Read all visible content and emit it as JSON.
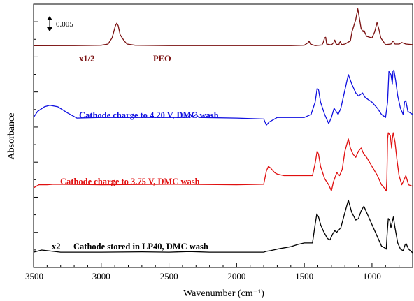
{
  "chart_data": {
    "type": "line",
    "title": "",
    "xlabel": "Wavenumber (cm⁻¹)",
    "ylabel": "Absorbance",
    "xlim": [
      3500,
      700
    ],
    "x_reversed": true,
    "x_ticks": [
      3500,
      3000,
      2500,
      2000,
      1500,
      1000
    ],
    "grid": false,
    "scale_bar": "0.005",
    "series": [
      {
        "name": "PEO",
        "multiplier_label": "x1/2",
        "color": "#7a1010",
        "points": [
          [
            3500,
            0.7845
          ],
          [
            3200,
            0.785
          ],
          [
            3000,
            0.786
          ],
          [
            2950,
            0.79
          ],
          [
            2920,
            0.81
          ],
          [
            2895,
            0.85
          ],
          [
            2885,
            0.858
          ],
          [
            2875,
            0.85
          ],
          [
            2860,
            0.82
          ],
          [
            2830,
            0.8
          ],
          [
            2810,
            0.79
          ],
          [
            2750,
            0.786
          ],
          [
            2500,
            0.785
          ],
          [
            2000,
            0.785
          ],
          [
            1600,
            0.785
          ],
          [
            1500,
            0.786
          ],
          [
            1470,
            0.795
          ],
          [
            1465,
            0.8
          ],
          [
            1455,
            0.79
          ],
          [
            1420,
            0.785
          ],
          [
            1370,
            0.787
          ],
          [
            1360,
            0.795
          ],
          [
            1350,
            0.81
          ],
          [
            1342,
            0.812
          ],
          [
            1335,
            0.79
          ],
          [
            1300,
            0.787
          ],
          [
            1282,
            0.795
          ],
          [
            1275,
            0.803
          ],
          [
            1265,
            0.79
          ],
          [
            1245,
            0.787
          ],
          [
            1240,
            0.795
          ],
          [
            1233,
            0.798
          ],
          [
            1225,
            0.788
          ],
          [
            1200,
            0.79
          ],
          [
            1160,
            0.8
          ],
          [
            1148,
            0.83
          ],
          [
            1120,
            0.87
          ],
          [
            1105,
            0.905
          ],
          [
            1095,
            0.88
          ],
          [
            1080,
            0.84
          ],
          [
            1065,
            0.83
          ],
          [
            1060,
            0.835
          ],
          [
            1040,
            0.815
          ],
          [
            1000,
            0.81
          ],
          [
            980,
            0.83
          ],
          [
            963,
            0.86
          ],
          [
            950,
            0.84
          ],
          [
            935,
            0.81
          ],
          [
            900,
            0.788
          ],
          [
            860,
            0.79
          ],
          [
            845,
            0.8
          ],
          [
            842,
            0.8
          ],
          [
            830,
            0.79
          ],
          [
            800,
            0.79
          ],
          [
            780,
            0.795
          ],
          [
            750,
            0.79
          ],
          [
            700,
            0.788
          ]
        ]
      },
      {
        "name": "Cathode charge to 4.20 V, DMC wash",
        "color": "#1010e0",
        "points": [
          [
            3500,
            0.55
          ],
          [
            3470,
            0.57
          ],
          [
            3420,
            0.585
          ],
          [
            3380,
            0.59
          ],
          [
            3320,
            0.585
          ],
          [
            3250,
            0.565
          ],
          [
            3180,
            0.548
          ],
          [
            3000,
            0.55
          ],
          [
            2600,
            0.55
          ],
          [
            2360,
            0.55
          ],
          [
            2345,
            0.56
          ],
          [
            2340,
            0.56
          ],
          [
            2330,
            0.55
          ],
          [
            2300,
            0.56
          ],
          [
            2280,
            0.55
          ],
          [
            2000,
            0.548
          ],
          [
            1800,
            0.545
          ],
          [
            1780,
            0.525
          ],
          [
            1760,
            0.535
          ],
          [
            1700,
            0.55
          ],
          [
            1600,
            0.55
          ],
          [
            1500,
            0.55
          ],
          [
            1450,
            0.56
          ],
          [
            1420,
            0.6
          ],
          [
            1405,
            0.645
          ],
          [
            1395,
            0.64
          ],
          [
            1380,
            0.6
          ],
          [
            1350,
            0.56
          ],
          [
            1320,
            0.53
          ],
          [
            1300,
            0.55
          ],
          [
            1280,
            0.58
          ],
          [
            1250,
            0.56
          ],
          [
            1230,
            0.58
          ],
          [
            1200,
            0.64
          ],
          [
            1175,
            0.69
          ],
          [
            1150,
            0.66
          ],
          [
            1120,
            0.63
          ],
          [
            1100,
            0.62
          ],
          [
            1070,
            0.63
          ],
          [
            1050,
            0.615
          ],
          [
            1000,
            0.6
          ],
          [
            960,
            0.58
          ],
          [
            930,
            0.56
          ],
          [
            900,
            0.55
          ],
          [
            885,
            0.6
          ],
          [
            875,
            0.7
          ],
          [
            860,
            0.69
          ],
          [
            850,
            0.66
          ],
          [
            845,
            0.7
          ],
          [
            838,
            0.705
          ],
          [
            825,
            0.67
          ],
          [
            810,
            0.62
          ],
          [
            790,
            0.58
          ],
          [
            770,
            0.56
          ],
          [
            760,
            0.6
          ],
          [
            750,
            0.605
          ],
          [
            735,
            0.57
          ],
          [
            700,
            0.56
          ]
        ]
      },
      {
        "name": "Cathode charge to 3.75 V, DMC wash",
        "color": "#e01010",
        "points": [
          [
            3500,
            0.32
          ],
          [
            3460,
            0.33
          ],
          [
            3400,
            0.33
          ],
          [
            3350,
            0.332
          ],
          [
            3000,
            0.33
          ],
          [
            2500,
            0.332
          ],
          [
            2000,
            0.33
          ],
          [
            1800,
            0.332
          ],
          [
            1780,
            0.375
          ],
          [
            1765,
            0.39
          ],
          [
            1750,
            0.385
          ],
          [
            1720,
            0.37
          ],
          [
            1700,
            0.365
          ],
          [
            1650,
            0.36
          ],
          [
            1600,
            0.36
          ],
          [
            1500,
            0.36
          ],
          [
            1440,
            0.36
          ],
          [
            1420,
            0.4
          ],
          [
            1405,
            0.44
          ],
          [
            1395,
            0.43
          ],
          [
            1380,
            0.39
          ],
          [
            1350,
            0.35
          ],
          [
            1320,
            0.33
          ],
          [
            1300,
            0.31
          ],
          [
            1285,
            0.34
          ],
          [
            1260,
            0.37
          ],
          [
            1240,
            0.36
          ],
          [
            1220,
            0.38
          ],
          [
            1200,
            0.44
          ],
          [
            1175,
            0.48
          ],
          [
            1160,
            0.45
          ],
          [
            1140,
            0.43
          ],
          [
            1120,
            0.42
          ],
          [
            1100,
            0.44
          ],
          [
            1080,
            0.45
          ],
          [
            1060,
            0.43
          ],
          [
            1040,
            0.42
          ],
          [
            1000,
            0.39
          ],
          [
            960,
            0.36
          ],
          [
            930,
            0.33
          ],
          [
            910,
            0.32
          ],
          [
            895,
            0.31
          ],
          [
            890,
            0.35
          ],
          [
            885,
            0.48
          ],
          [
            880,
            0.5
          ],
          [
            865,
            0.49
          ],
          [
            855,
            0.45
          ],
          [
            850,
            0.48
          ],
          [
            843,
            0.5
          ],
          [
            830,
            0.47
          ],
          [
            815,
            0.41
          ],
          [
            800,
            0.36
          ],
          [
            780,
            0.33
          ],
          [
            760,
            0.35
          ],
          [
            750,
            0.36
          ],
          [
            730,
            0.33
          ],
          [
            700,
            0.325
          ]
        ]
      },
      {
        "name": "Cathode stored in LP40, DMC wash",
        "multiplier_label": "x2",
        "color": "#000000",
        "points": [
          [
            3500,
            0.11
          ],
          [
            3440,
            0.117
          ],
          [
            3400,
            0.115
          ],
          [
            3300,
            0.11
          ],
          [
            3200,
            0.11
          ],
          [
            3000,
            0.11
          ],
          [
            2700,
            0.111
          ],
          [
            2500,
            0.11
          ],
          [
            2350,
            0.112
          ],
          [
            2200,
            0.11
          ],
          [
            2000,
            0.11
          ],
          [
            1800,
            0.11
          ],
          [
            1780,
            0.113
          ],
          [
            1750,
            0.115
          ],
          [
            1700,
            0.12
          ],
          [
            1600,
            0.128
          ],
          [
            1550,
            0.135
          ],
          [
            1500,
            0.14
          ],
          [
            1460,
            0.14
          ],
          [
            1440,
            0.14
          ],
          [
            1420,
            0.2
          ],
          [
            1408,
            0.235
          ],
          [
            1395,
            0.225
          ],
          [
            1380,
            0.2
          ],
          [
            1360,
            0.18
          ],
          [
            1330,
            0.155
          ],
          [
            1310,
            0.15
          ],
          [
            1290,
            0.17
          ],
          [
            1275,
            0.18
          ],
          [
            1260,
            0.175
          ],
          [
            1230,
            0.19
          ],
          [
            1200,
            0.24
          ],
          [
            1175,
            0.28
          ],
          [
            1150,
            0.24
          ],
          [
            1120,
            0.215
          ],
          [
            1100,
            0.22
          ],
          [
            1080,
            0.245
          ],
          [
            1060,
            0.26
          ],
          [
            1040,
            0.24
          ],
          [
            1000,
            0.2
          ],
          [
            960,
            0.16
          ],
          [
            930,
            0.13
          ],
          [
            910,
            0.125
          ],
          [
            895,
            0.12
          ],
          [
            888,
            0.17
          ],
          [
            880,
            0.22
          ],
          [
            870,
            0.215
          ],
          [
            860,
            0.19
          ],
          [
            850,
            0.21
          ],
          [
            842,
            0.225
          ],
          [
            830,
            0.19
          ],
          [
            810,
            0.14
          ],
          [
            790,
            0.12
          ],
          [
            770,
            0.115
          ],
          [
            755,
            0.135
          ],
          [
            748,
            0.138
          ],
          [
            730,
            0.12
          ],
          [
            700,
            0.108
          ]
        ]
      }
    ]
  }
}
